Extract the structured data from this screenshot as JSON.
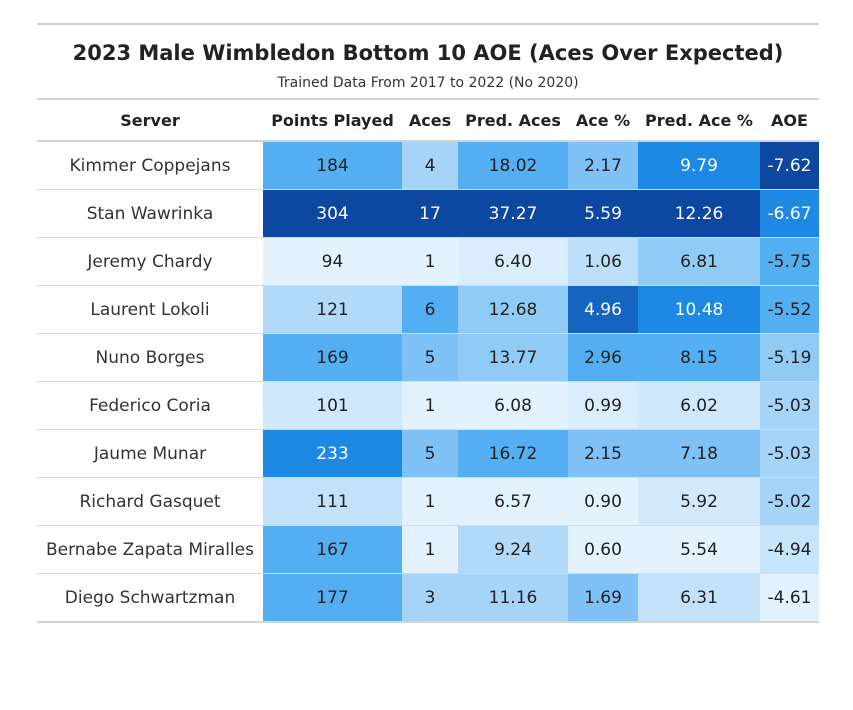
{
  "header": {
    "title": "2023 Male Wimbledon Bottom 10 AOE (Aces Over Expected)",
    "subtitle": "Trained Data From 2017 to 2022 (No 2020)"
  },
  "chart_data": {
    "type": "table",
    "columns": [
      "Server",
      "Points Played",
      "Aces",
      "Pred. Aces",
      "Ace %",
      "Pred. Ace %",
      "AOE"
    ],
    "rows": [
      [
        "Kimmer Coppejans",
        "184",
        "4",
        "18.02",
        "2.17",
        "9.79",
        "-7.62"
      ],
      [
        "Stan Wawrinka",
        "304",
        "17",
        "37.27",
        "5.59",
        "12.26",
        "-6.67"
      ],
      [
        "Jeremy Chardy",
        "94",
        "1",
        "6.40",
        "1.06",
        "6.81",
        "-5.75"
      ],
      [
        "Laurent Lokoli",
        "121",
        "6",
        "12.68",
        "4.96",
        "10.48",
        "-5.52"
      ],
      [
        "Nuno Borges",
        "169",
        "5",
        "13.77",
        "2.96",
        "8.15",
        "-5.19"
      ],
      [
        "Federico Coria",
        "101",
        "1",
        "6.08",
        "0.99",
        "6.02",
        "-5.03"
      ],
      [
        "Jaume Munar",
        "233",
        "5",
        "16.72",
        "2.15",
        "7.18",
        "-5.03"
      ],
      [
        "Richard Gasquet",
        "111",
        "1",
        "6.57",
        "0.90",
        "5.92",
        "-5.02"
      ],
      [
        "Bernabe Zapata Miralles",
        "167",
        "1",
        "9.24",
        "0.60",
        "5.54",
        "-4.94"
      ],
      [
        "Diego Schwartzman",
        "177",
        "3",
        "11.16",
        "1.69",
        "6.31",
        "-4.61"
      ]
    ],
    "cell_colors": [
      [
        null,
        "#54aef2",
        "#a6d3f8",
        "#54aef2",
        "#7fc0f5",
        "#1e88e5",
        "#0d47a1"
      ],
      [
        null,
        "#0d47a1",
        "#0d47a1",
        "#0d47a1",
        "#0d47a1",
        "#0d47a1",
        "#1e88e5"
      ],
      [
        null,
        "#e3f2fd",
        "#e3f2fd",
        "#d9edfc",
        "#bcdffa",
        "#90cbf6",
        "#54aef2"
      ],
      [
        null,
        "#b3d9f9",
        "#54aef2",
        "#90cbf6",
        "#1565c0",
        "#1e88e5",
        "#54aef2"
      ],
      [
        null,
        "#54aef2",
        "#7fc0f5",
        "#90cbf6",
        "#54aef2",
        "#54aef2",
        "#90cbf6"
      ],
      [
        null,
        "#cfe8fb",
        "#e3f2fd",
        "#e3f2fd",
        "#d9edfc",
        "#cfe8fb",
        "#a6d3f8"
      ],
      [
        null,
        "#1e88e5",
        "#7fc0f5",
        "#54aef2",
        "#7fc0f5",
        "#7fc0f5",
        "#a6d3f8"
      ],
      [
        null,
        "#c2e2fa",
        "#e3f2fd",
        "#e3f2fd",
        "#e3f2fd",
        "#d4eafc",
        "#a6d3f8"
      ],
      [
        null,
        "#54aef2",
        "#e3f2fd",
        "#b3d9f9",
        "#e3f2fd",
        "#e3f2fd",
        "#c6e4fa"
      ],
      [
        null,
        "#54aef2",
        "#a6d3f8",
        "#a6d3f8",
        "#7fc0f5",
        "#c2e2fa",
        "#e3f2fd"
      ]
    ],
    "dark_text_cells_white": true
  }
}
